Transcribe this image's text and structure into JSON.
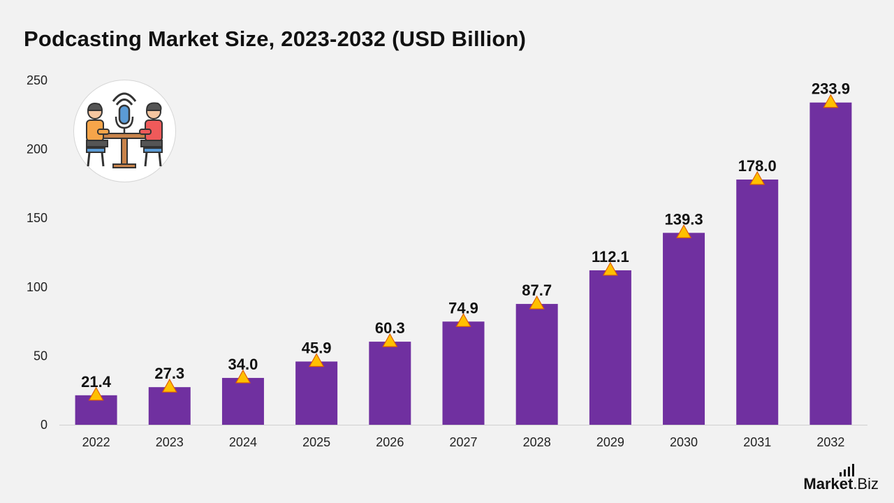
{
  "title": "Podcasting Market Size, 2023-2032 (USD Billion)",
  "brand": {
    "name": "Market",
    "suffix": ".Biz"
  },
  "icon": "podcast-interview-icon",
  "colors": {
    "bar": "#7030a0",
    "marker": "#ffc000",
    "marker_stroke": "#e06000",
    "background": "#f2f2f2"
  },
  "chart_data": {
    "type": "bar",
    "title": "Podcasting Market Size, 2023-2032 (USD Billion)",
    "xlabel": "",
    "ylabel": "",
    "categories": [
      "2022",
      "2023",
      "2024",
      "2025",
      "2026",
      "2027",
      "2028",
      "2029",
      "2030",
      "2031",
      "2032"
    ],
    "values": [
      21.4,
      27.3,
      34.0,
      45.9,
      60.3,
      74.9,
      87.7,
      112.1,
      139.3,
      178.0,
      233.9
    ],
    "value_labels": [
      "21.4",
      "27.3",
      "34.0",
      "45.9",
      "60.3",
      "74.9",
      "87.7",
      "112.1",
      "139.3",
      "178.0",
      "233.9"
    ],
    "ylim": [
      0,
      250
    ],
    "yticks": [
      0,
      50,
      100,
      150,
      200,
      250
    ],
    "grid": false,
    "legend": "none"
  }
}
